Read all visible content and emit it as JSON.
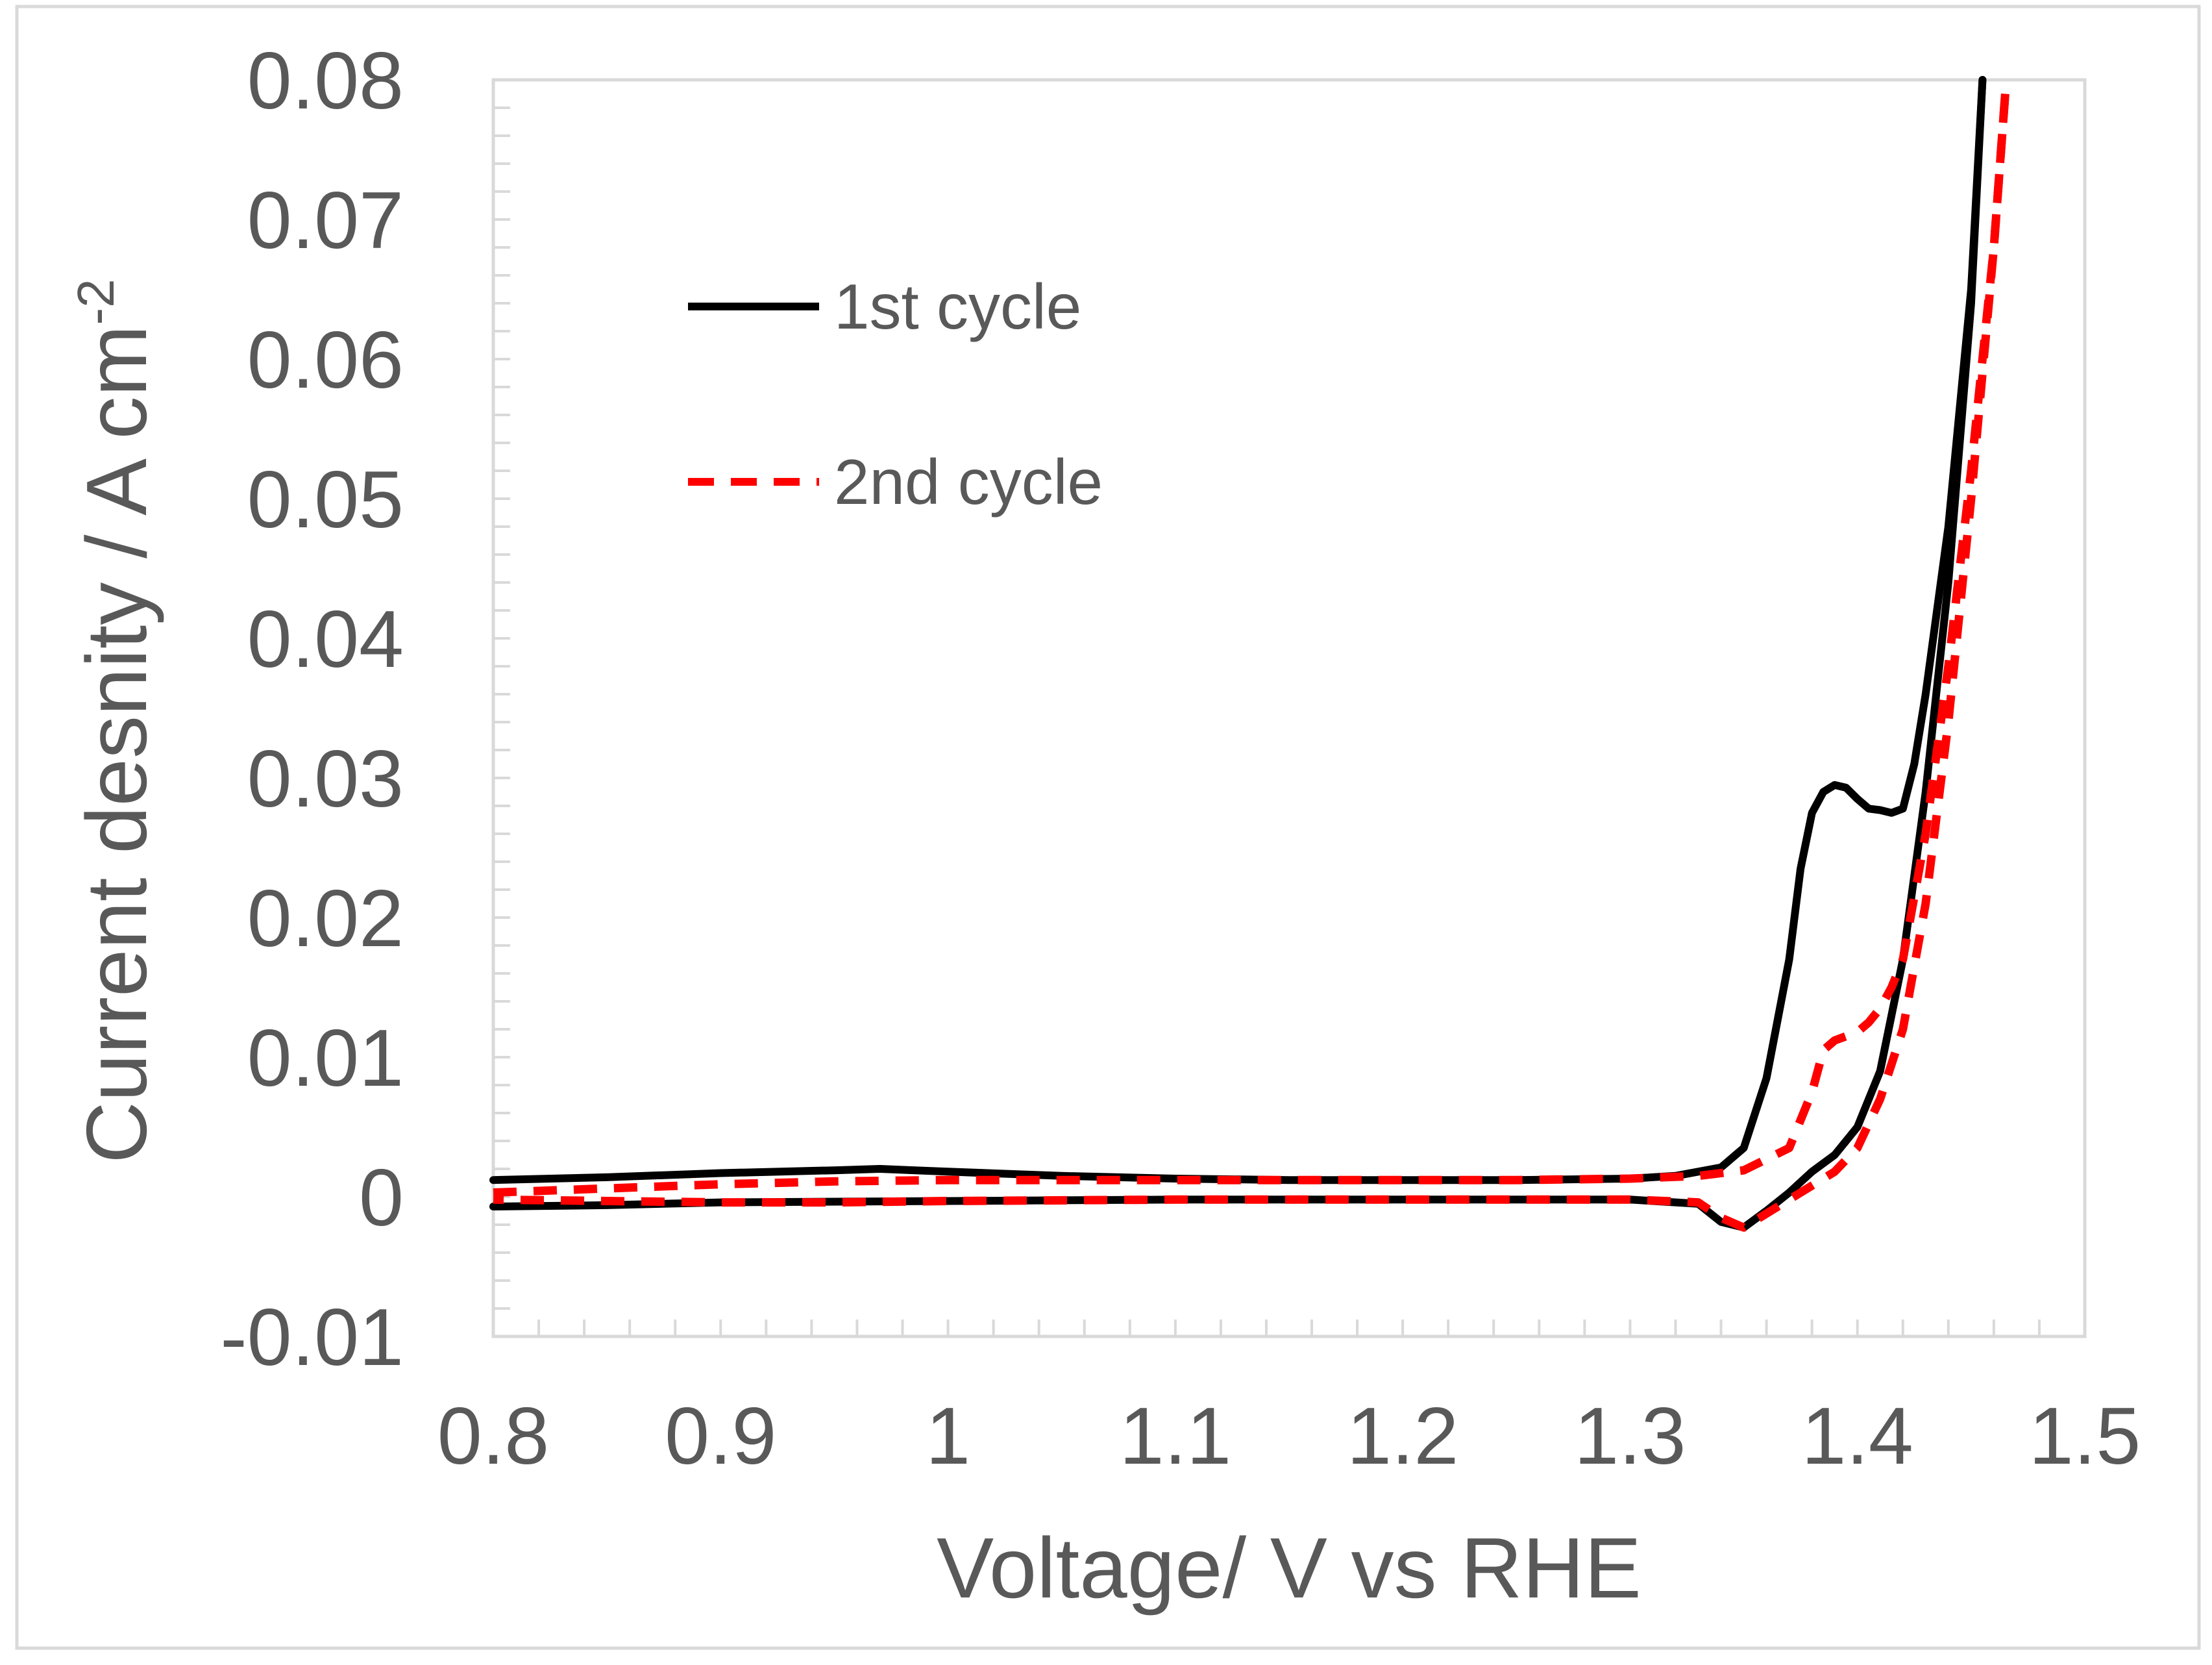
{
  "chart_data": {
    "type": "line",
    "title": "",
    "xlabel": "Voltage/ V vs RHE",
    "ylabel": {
      "main": "Current desnity / A cm",
      "superscript": "-2"
    },
    "xlim": [
      0.8,
      1.5
    ],
    "ylim": [
      -0.01,
      0.08
    ],
    "x_ticks": [
      "0.8",
      "0.9",
      "1",
      "1.1",
      "1.2",
      "1.3",
      "1.4",
      "1.5"
    ],
    "y_ticks": [
      "-0.01",
      "0",
      "0.01",
      "0.02",
      "0.03",
      "0.04",
      "0.05",
      "0.06",
      "0.07",
      "0.08"
    ],
    "x_tick_values": [
      0.8,
      0.9,
      1.0,
      1.1,
      1.2,
      1.3,
      1.4,
      1.5
    ],
    "y_tick_values": [
      -0.01,
      0,
      0.01,
      0.02,
      0.03,
      0.04,
      0.05,
      0.06,
      0.07,
      0.08
    ],
    "x_minor_step": 0.02,
    "y_minor_step": 0.002,
    "grid": false,
    "legend_position": "upper-left",
    "series": [
      {
        "name": "1st cycle",
        "color": "#000000",
        "style": "solid",
        "forward": {
          "x": [
            0.8,
            0.85,
            0.9,
            0.95,
            0.97,
            1.0,
            1.05,
            1.1,
            1.15,
            1.2,
            1.25,
            1.3,
            1.32,
            1.34,
            1.35,
            1.36,
            1.37,
            1.375,
            1.38,
            1.385,
            1.39,
            1.395,
            1.4,
            1.405,
            1.41,
            1.415,
            1.42,
            1.425,
            1.43,
            1.44,
            1.45,
            1.455
          ],
          "y": [
            0.0012,
            0.0014,
            0.0017,
            0.0019,
            0.002,
            0.0018,
            0.0015,
            0.0013,
            0.0012,
            0.0012,
            0.0012,
            0.0013,
            0.0015,
            0.0021,
            0.0035,
            0.0085,
            0.017,
            0.0235,
            0.0275,
            0.029,
            0.0295,
            0.0293,
            0.0285,
            0.0278,
            0.0277,
            0.0275,
            0.0278,
            0.031,
            0.036,
            0.048,
            0.065,
            0.08
          ]
        },
        "reverse": {
          "x": [
            1.455,
            1.45,
            1.44,
            1.43,
            1.42,
            1.41,
            1.4,
            1.39,
            1.38,
            1.37,
            1.36,
            1.35,
            1.34,
            1.33,
            1.3,
            1.2,
            1.1,
            1.0,
            0.9,
            0.85,
            0.8
          ],
          "y": [
            0.08,
            0.064,
            0.044,
            0.029,
            0.017,
            0.009,
            0.005,
            0.003,
            0.0018,
            0.0003,
            -0.001,
            -0.0022,
            -0.0018,
            -0.0005,
            -0.0002,
            -0.0002,
            -0.0002,
            -0.0003,
            -0.0004,
            -0.0006,
            -0.0007
          ]
        }
      },
      {
        "name": "2nd cycle",
        "color": "#ff0000",
        "style": "dashed",
        "forward": {
          "x": [
            0.8,
            0.85,
            0.9,
            0.95,
            1.0,
            1.05,
            1.1,
            1.15,
            1.2,
            1.25,
            1.3,
            1.33,
            1.35,
            1.37,
            1.38,
            1.385,
            1.39,
            1.395,
            1.4,
            1.405,
            1.41,
            1.415,
            1.42,
            1.43,
            1.44,
            1.45,
            1.46,
            1.465
          ],
          "y": [
            0.0003,
            0.0006,
            0.0009,
            0.0011,
            0.0012,
            0.0012,
            0.0012,
            0.0012,
            0.0012,
            0.0012,
            0.0013,
            0.0015,
            0.0019,
            0.0035,
            0.0075,
            0.0105,
            0.0112,
            0.0115,
            0.0118,
            0.0125,
            0.0135,
            0.015,
            0.017,
            0.026,
            0.038,
            0.052,
            0.068,
            0.079
          ]
        },
        "reverse": {
          "x": [
            1.465,
            1.46,
            1.45,
            1.44,
            1.43,
            1.42,
            1.41,
            1.4,
            1.39,
            1.38,
            1.37,
            1.36,
            1.35,
            1.34,
            1.33,
            1.3,
            1.2,
            1.1,
            1.0,
            0.95,
            0.9,
            0.85,
            0.8
          ],
          "y": [
            0.079,
            0.068,
            0.05,
            0.034,
            0.021,
            0.012,
            0.007,
            0.0035,
            0.0018,
            0.0008,
            -0.0002,
            -0.0012,
            -0.0022,
            -0.0015,
            -0.0004,
            -0.0002,
            -0.0002,
            -0.0002,
            -0.0003,
            -0.0004,
            -0.0004,
            -0.0003,
            -0.0002
          ]
        }
      }
    ]
  }
}
